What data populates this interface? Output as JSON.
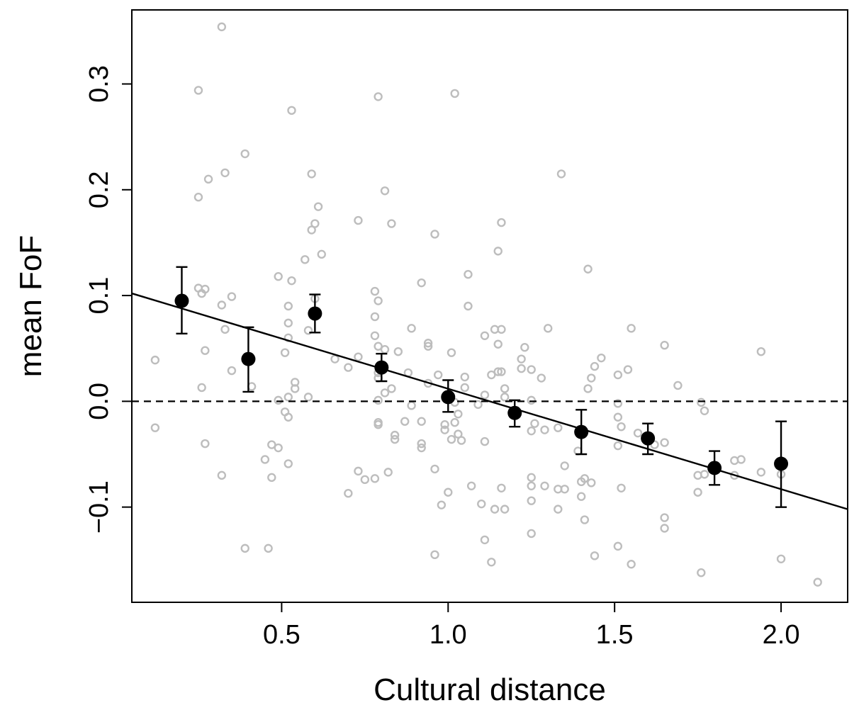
{
  "chart_data": {
    "type": "scatter",
    "xlabel": "Cultural distance",
    "ylabel": "mean FoF",
    "xlim": [
      0.05,
      2.2
    ],
    "ylim": [
      -0.19,
      0.37
    ],
    "x_ticks": [
      0.5,
      1.0,
      1.5,
      2.0
    ],
    "x_tick_labels": [
      "0.5",
      "1.0",
      "1.5",
      "2.0"
    ],
    "y_ticks": [
      -0.1,
      0.0,
      0.1,
      0.2,
      0.3
    ],
    "y_tick_labels": [
      "−0.1",
      "0.0",
      "0.1",
      "0.2",
      "0.3"
    ],
    "grid": false,
    "legend": "none",
    "colors": {
      "raw_points": "#bdbdbd",
      "binned_means": "#000000",
      "line": "#000000"
    },
    "reference_line": {
      "y": 0.0,
      "style": "dashed"
    },
    "regression_line": {
      "x": [
        0.05,
        2.2
      ],
      "y": [
        0.102,
        -0.102
      ]
    },
    "binned_means": [
      {
        "x": 0.2,
        "y": 0.095,
        "lo": 0.064,
        "hi": 0.127
      },
      {
        "x": 0.4,
        "y": 0.04,
        "lo": 0.009,
        "hi": 0.07
      },
      {
        "x": 0.6,
        "y": 0.083,
        "lo": 0.065,
        "hi": 0.101
      },
      {
        "x": 0.8,
        "y": 0.032,
        "lo": 0.019,
        "hi": 0.045
      },
      {
        "x": 1.0,
        "y": 0.004,
        "lo": -0.01,
        "hi": 0.02
      },
      {
        "x": 1.2,
        "y": -0.011,
        "lo": -0.024,
        "hi": 0.001
      },
      {
        "x": 1.4,
        "y": -0.029,
        "lo": -0.05,
        "hi": -0.008
      },
      {
        "x": 1.6,
        "y": -0.035,
        "lo": -0.05,
        "hi": -0.021
      },
      {
        "x": 1.8,
        "y": -0.063,
        "lo": -0.079,
        "hi": -0.047
      },
      {
        "x": 2.0,
        "y": -0.059,
        "lo": -0.1,
        "hi": -0.019
      }
    ],
    "raw_points": [
      [
        0.32,
        0.354
      ],
      [
        0.25,
        0.294
      ],
      [
        0.53,
        0.275
      ],
      [
        1.02,
        0.291
      ],
      [
        0.79,
        0.288
      ],
      [
        0.39,
        0.234
      ],
      [
        0.33,
        0.216
      ],
      [
        0.59,
        0.215
      ],
      [
        1.34,
        0.215
      ],
      [
        0.28,
        0.21
      ],
      [
        0.25,
        0.193
      ],
      [
        0.81,
        0.199
      ],
      [
        0.61,
        0.184
      ],
      [
        0.73,
        0.171
      ],
      [
        0.83,
        0.168
      ],
      [
        0.6,
        0.168
      ],
      [
        1.16,
        0.169
      ],
      [
        0.59,
        0.162
      ],
      [
        0.96,
        0.158
      ],
      [
        1.15,
        0.142
      ],
      [
        0.62,
        0.139
      ],
      [
        0.57,
        0.134
      ],
      [
        1.42,
        0.125
      ],
      [
        1.06,
        0.12
      ],
      [
        0.49,
        0.118
      ],
      [
        0.53,
        0.114
      ],
      [
        0.92,
        0.112
      ],
      [
        0.25,
        0.107
      ],
      [
        0.27,
        0.106
      ],
      [
        0.26,
        0.102
      ],
      [
        0.35,
        0.099
      ],
      [
        0.78,
        0.104
      ],
      [
        0.79,
        0.095
      ],
      [
        0.6,
        0.097
      ],
      [
        0.32,
        0.091
      ],
      [
        0.52,
        0.09
      ],
      [
        1.06,
        0.09
      ],
      [
        0.78,
        0.08
      ],
      [
        0.52,
        0.074
      ],
      [
        0.33,
        0.068
      ],
      [
        0.89,
        0.069
      ],
      [
        1.14,
        0.068
      ],
      [
        1.16,
        0.068
      ],
      [
        1.3,
        0.069
      ],
      [
        1.55,
        0.069
      ],
      [
        0.58,
        0.067
      ],
      [
        1.11,
        0.062
      ],
      [
        0.52,
        0.06
      ],
      [
        0.78,
        0.062
      ],
      [
        0.79,
        0.052
      ],
      [
        1.15,
        0.054
      ],
      [
        0.94,
        0.055
      ],
      [
        0.94,
        0.052
      ],
      [
        1.65,
        0.053
      ],
      [
        1.23,
        0.051
      ],
      [
        0.27,
        0.048
      ],
      [
        0.51,
        0.046
      ],
      [
        0.81,
        0.049
      ],
      [
        1.01,
        0.046
      ],
      [
        1.94,
        0.047
      ],
      [
        0.85,
        0.047
      ],
      [
        0.73,
        0.042
      ],
      [
        1.46,
        0.041
      ],
      [
        0.12,
        0.039
      ],
      [
        0.66,
        0.04
      ],
      [
        1.22,
        0.04
      ],
      [
        1.44,
        0.033
      ],
      [
        0.7,
        0.032
      ],
      [
        1.22,
        0.031
      ],
      [
        1.25,
        0.03
      ],
      [
        1.16,
        0.028
      ],
      [
        1.54,
        0.03
      ],
      [
        0.35,
        0.029
      ],
      [
        0.88,
        0.027
      ],
      [
        1.15,
        0.028
      ],
      [
        0.79,
        0.027
      ],
      [
        1.13,
        0.025
      ],
      [
        1.51,
        0.025
      ],
      [
        0.97,
        0.025
      ],
      [
        1.05,
        0.023
      ],
      [
        0.79,
        0.022
      ],
      [
        1.43,
        0.022
      ],
      [
        1.28,
        0.022
      ],
      [
        0.54,
        0.018
      ],
      [
        0.94,
        0.017
      ],
      [
        1.69,
        0.015
      ],
      [
        0.26,
        0.013
      ],
      [
        0.41,
        0.014
      ],
      [
        0.54,
        0.012
      ],
      [
        1.05,
        0.013
      ],
      [
        1.17,
        0.012
      ],
      [
        1.42,
        0.012
      ],
      [
        0.83,
        0.012
      ],
      [
        0.81,
        0.008
      ],
      [
        1.11,
        0.006
      ],
      [
        1.17,
        0.004
      ],
      [
        0.52,
        0.004
      ],
      [
        0.58,
        0.004
      ],
      [
        0.49,
        0.001
      ],
      [
        0.79,
        0.001
      ],
      [
        1.02,
        -0.001
      ],
      [
        1.25,
        0.001
      ],
      [
        1.51,
        -0.002
      ],
      [
        1.76,
        -0.001
      ],
      [
        1.09,
        -0.003
      ],
      [
        0.89,
        -0.004
      ],
      [
        1.77,
        -0.009
      ],
      [
        0.51,
        -0.01
      ],
      [
        1.03,
        -0.012
      ],
      [
        0.52,
        -0.015
      ],
      [
        1.51,
        -0.015
      ],
      [
        0.87,
        -0.019
      ],
      [
        1.02,
        -0.02
      ],
      [
        0.92,
        -0.019
      ],
      [
        0.79,
        -0.02
      ],
      [
        0.79,
        -0.022
      ],
      [
        1.26,
        -0.021
      ],
      [
        0.99,
        -0.022
      ],
      [
        1.52,
        -0.024
      ],
      [
        0.12,
        -0.025
      ],
      [
        0.99,
        -0.027
      ],
      [
        1.29,
        -0.027
      ],
      [
        1.25,
        -0.028
      ],
      [
        1.33,
        -0.025
      ],
      [
        1.03,
        -0.031
      ],
      [
        0.84,
        -0.032
      ],
      [
        1.57,
        -0.03
      ],
      [
        0.84,
        -0.036
      ],
      [
        1.01,
        -0.036
      ],
      [
        1.04,
        -0.037
      ],
      [
        1.11,
        -0.038
      ],
      [
        0.27,
        -0.04
      ],
      [
        0.92,
        -0.04
      ],
      [
        1.62,
        -0.041
      ],
      [
        1.51,
        -0.042
      ],
      [
        0.47,
        -0.041
      ],
      [
        1.65,
        -0.039
      ],
      [
        0.49,
        -0.044
      ],
      [
        0.92,
        -0.044
      ],
      [
        1.39,
        -0.047
      ],
      [
        1.86,
        -0.056
      ],
      [
        1.88,
        -0.055
      ],
      [
        0.45,
        -0.055
      ],
      [
        0.52,
        -0.059
      ],
      [
        1.35,
        -0.061
      ],
      [
        0.96,
        -0.064
      ],
      [
        0.73,
        -0.066
      ],
      [
        0.82,
        -0.067
      ],
      [
        1.94,
        -0.067
      ],
      [
        1.75,
        -0.07
      ],
      [
        0.32,
        -0.07
      ],
      [
        1.77,
        -0.069
      ],
      [
        2.0,
        -0.069
      ],
      [
        1.86,
        -0.07
      ],
      [
        0.47,
        -0.072
      ],
      [
        1.25,
        -0.072
      ],
      [
        0.75,
        -0.074
      ],
      [
        0.78,
        -0.073
      ],
      [
        1.41,
        -0.073
      ],
      [
        1.4,
        -0.076
      ],
      [
        1.43,
        -0.077
      ],
      [
        1.07,
        -0.08
      ],
      [
        1.25,
        -0.08
      ],
      [
        1.29,
        -0.08
      ],
      [
        1.33,
        -0.083
      ],
      [
        1.35,
        -0.083
      ],
      [
        1.16,
        -0.082
      ],
      [
        1.52,
        -0.082
      ],
      [
        1.0,
        -0.086
      ],
      [
        0.7,
        -0.087
      ],
      [
        1.75,
        -0.086
      ],
      [
        1.4,
        -0.09
      ],
      [
        1.25,
        -0.094
      ],
      [
        0.98,
        -0.098
      ],
      [
        1.1,
        -0.097
      ],
      [
        1.14,
        -0.102
      ],
      [
        1.17,
        -0.102
      ],
      [
        1.33,
        -0.102
      ],
      [
        1.65,
        -0.11
      ],
      [
        1.41,
        -0.112
      ],
      [
        1.65,
        -0.12
      ],
      [
        1.25,
        -0.125
      ],
      [
        1.11,
        -0.131
      ],
      [
        1.51,
        -0.137
      ],
      [
        0.39,
        -0.139
      ],
      [
        0.46,
        -0.139
      ],
      [
        0.96,
        -0.145
      ],
      [
        1.44,
        -0.146
      ],
      [
        2.0,
        -0.149
      ],
      [
        1.13,
        -0.152
      ],
      [
        1.55,
        -0.154
      ],
      [
        1.76,
        -0.162
      ],
      [
        2.11,
        -0.171
      ]
    ]
  }
}
